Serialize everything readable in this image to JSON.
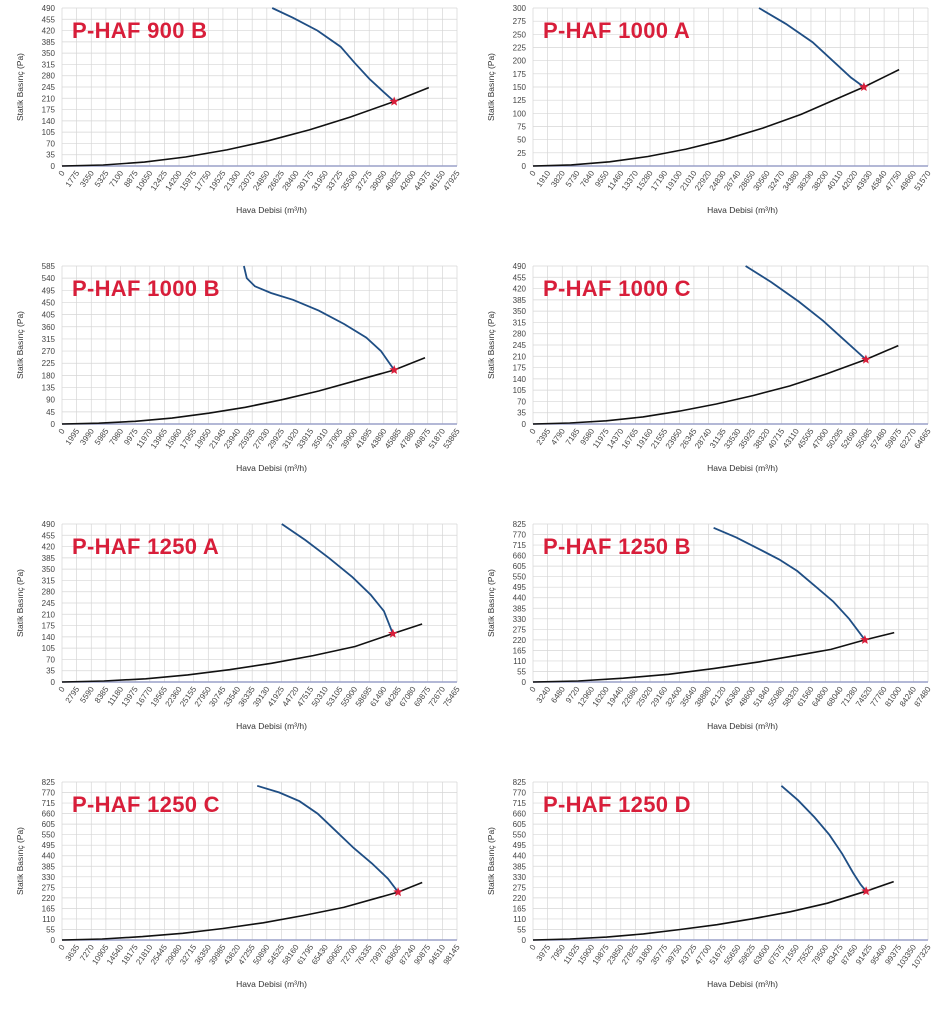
{
  "colors": {
    "title": "#d81e3a",
    "fan_curve": "#1f4e84",
    "system_curve": "#111111",
    "grid": "#d6d6d6",
    "x_axis": "#9aa0c8",
    "operating_point": "#d81e3a"
  },
  "chart_data": [
    {
      "type": "line",
      "title": "P-HAF 900 B",
      "xlabel": "Hava Debisi (m³/h)",
      "ylabel": "Statik Basınç (Pa)",
      "grid": true,
      "x_ticks": [
        "0",
        "1775",
        "3550",
        "5325",
        "7100",
        "8875",
        "10650",
        "12425",
        "14200",
        "15975",
        "17750",
        "19525",
        "21300",
        "23075",
        "24850",
        "26625",
        "28400",
        "30175",
        "31950",
        "33725",
        "35500",
        "37275",
        "39050",
        "40825",
        "42600",
        "44375",
        "46150",
        "47925"
      ],
      "y_ticks": [
        "0",
        "35",
        "70",
        "105",
        "140",
        "175",
        "210",
        "245",
        "280",
        "315",
        "350",
        "385",
        "420",
        "455",
        "490"
      ],
      "xlim": [
        0,
        47925
      ],
      "ylim": [
        0,
        490
      ],
      "series": [
        {
          "role": "fan",
          "x": [
            25500,
            28000,
            31000,
            33800,
            35500,
            37300,
            39000,
            40300
          ],
          "y": [
            490,
            460,
            420,
            370,
            320,
            270,
            230,
            200
          ]
        },
        {
          "role": "system",
          "x": [
            0,
            5000,
            10000,
            15000,
            20000,
            25000,
            30000,
            35000,
            40300,
            44500
          ],
          "y": [
            0,
            3,
            12,
            28,
            50,
            78,
            112,
            152,
            200,
            243
          ]
        }
      ],
      "operating_point": {
        "x": 40300,
        "y": 200
      }
    },
    {
      "type": "line",
      "title": "P-HAF 1000 A",
      "xlabel": "Hava Debisi (m³/h)",
      "ylabel": "Statik Basınç (Pa)",
      "grid": true,
      "x_ticks": [
        "0",
        "1910",
        "3820",
        "5730",
        "7640",
        "9550",
        "11460",
        "13370",
        "15280",
        "17190",
        "19100",
        "21010",
        "22920",
        "24830",
        "26740",
        "28650",
        "30560",
        "32470",
        "34380",
        "36290",
        "38200",
        "40110",
        "42020",
        "43930",
        "45840",
        "47750",
        "49660",
        "51570"
      ],
      "y_ticks": [
        "0",
        "25",
        "50",
        "75",
        "100",
        "125",
        "150",
        "175",
        "200",
        "225",
        "250",
        "275",
        "300"
      ],
      "xlim": [
        0,
        51570
      ],
      "ylim": [
        0,
        300
      ],
      "series": [
        {
          "role": "fan",
          "x": [
            29500,
            33000,
            36500,
            39500,
            41500,
            43200
          ],
          "y": [
            300,
            270,
            235,
            195,
            168,
            150
          ]
        },
        {
          "role": "system",
          "x": [
            0,
            5000,
            10000,
            15000,
            20000,
            25000,
            30000,
            35000,
            43200,
            47800
          ],
          "y": [
            0,
            2,
            8,
            18,
            32,
            50,
            72,
            98,
            150,
            183
          ]
        }
      ],
      "operating_point": {
        "x": 43200,
        "y": 150
      }
    },
    {
      "type": "line",
      "title": "P-HAF 1000 B",
      "xlabel": "Hava Debisi (m³/h)",
      "ylabel": "Statik Basınç (Pa)",
      "grid": true,
      "x_ticks": [
        "0",
        "1995",
        "3990",
        "5985",
        "7980",
        "9975",
        "11970",
        "13965",
        "15960",
        "17955",
        "19950",
        "21945",
        "23940",
        "25935",
        "27930",
        "29925",
        "31920",
        "33915",
        "35910",
        "37905",
        "39900",
        "41895",
        "43890",
        "45885",
        "47880",
        "49875",
        "51870",
        "53865"
      ],
      "y_ticks": [
        "0",
        "45",
        "90",
        "135",
        "180",
        "225",
        "270",
        "315",
        "360",
        "405",
        "450",
        "495",
        "540",
        "585"
      ],
      "xlim": [
        0,
        53865
      ],
      "ylim": [
        0,
        585
      ],
      "series": [
        {
          "role": "fan",
          "x": [
            24800,
            25200,
            26300,
            28500,
            31500,
            35000,
            38500,
            41500,
            43500,
            45300
          ],
          "y": [
            585,
            540,
            510,
            485,
            460,
            420,
            370,
            320,
            270,
            200
          ]
        },
        {
          "role": "system",
          "x": [
            0,
            5000,
            10000,
            15000,
            20000,
            25000,
            30000,
            35000,
            40000,
            45300,
            49500
          ],
          "y": [
            0,
            3,
            10,
            22,
            40,
            62,
            90,
            122,
            160,
            200,
            245
          ]
        }
      ],
      "operating_point": {
        "x": 45300,
        "y": 200
      }
    },
    {
      "type": "line",
      "title": "P-HAF 1000 C",
      "xlabel": "Hava Debisi (m³/h)",
      "ylabel": "Statik Basınç (Pa)",
      "grid": true,
      "x_ticks": [
        "0",
        "2395",
        "4790",
        "7185",
        "9580",
        "11975",
        "14370",
        "16765",
        "19160",
        "21555",
        "23950",
        "26345",
        "28740",
        "31135",
        "33530",
        "35925",
        "38320",
        "40715",
        "43110",
        "45505",
        "47900",
        "50295",
        "52690",
        "55085",
        "57480",
        "59875",
        "62270",
        "64665"
      ],
      "y_ticks": [
        "0",
        "35",
        "70",
        "105",
        "140",
        "175",
        "210",
        "245",
        "280",
        "315",
        "350",
        "385",
        "420",
        "455",
        "490"
      ],
      "xlim": [
        0,
        64665
      ],
      "ylim": [
        0,
        490
      ],
      "series": [
        {
          "role": "fan",
          "x": [
            34800,
            39000,
            43500,
            47500,
            51000,
            54500
          ],
          "y": [
            490,
            440,
            380,
            320,
            260,
            200
          ]
        },
        {
          "role": "system",
          "x": [
            0,
            6000,
            12000,
            18000,
            24000,
            30000,
            36000,
            42000,
            48000,
            54500,
            59800
          ],
          "y": [
            0,
            3,
            10,
            22,
            40,
            62,
            88,
            118,
            155,
            200,
            243
          ]
        }
      ],
      "operating_point": {
        "x": 54500,
        "y": 200
      }
    },
    {
      "type": "line",
      "title": "P-HAF 1250 A",
      "xlabel": "Hava Debisi (m³/h)",
      "ylabel": "Statik Basınç (Pa)",
      "grid": true,
      "x_ticks": [
        "0",
        "2795",
        "5590",
        "8385",
        "11180",
        "13975",
        "16770",
        "19565",
        "22360",
        "25155",
        "27950",
        "30745",
        "33540",
        "36335",
        "39130",
        "41925",
        "44720",
        "47515",
        "50310",
        "53105",
        "55900",
        "58695",
        "61490",
        "64285",
        "67080",
        "69875",
        "72670",
        "75465"
      ],
      "y_ticks": [
        "0",
        "35",
        "70",
        "105",
        "140",
        "175",
        "210",
        "245",
        "280",
        "315",
        "350",
        "385",
        "420",
        "455",
        "490"
      ],
      "xlim": [
        0,
        75465
      ],
      "ylim": [
        0,
        490
      ],
      "series": [
        {
          "role": "fan",
          "x": [
            42000,
            46500,
            51000,
            55500,
            59000,
            61500,
            63200
          ],
          "y": [
            490,
            440,
            385,
            325,
            270,
            220,
            150
          ]
        },
        {
          "role": "system",
          "x": [
            0,
            8000,
            16000,
            24000,
            32000,
            40000,
            48000,
            56000,
            63200,
            68800
          ],
          "y": [
            0,
            3,
            10,
            22,
            38,
            58,
            82,
            110,
            150,
            180
          ]
        }
      ],
      "operating_point": {
        "x": 63200,
        "y": 150
      }
    },
    {
      "type": "line",
      "title": "P-HAF 1250 B",
      "xlabel": "Hava Debisi (m³/h)",
      "ylabel": "Statik Basınç (Pa)",
      "grid": true,
      "x_ticks": [
        "0",
        "3240",
        "6480",
        "9720",
        "12960",
        "16200",
        "19440",
        "22680",
        "25920",
        "29160",
        "32400",
        "35640",
        "38880",
        "42120",
        "45360",
        "48600",
        "51840",
        "55080",
        "58320",
        "61560",
        "64800",
        "68040",
        "71280",
        "74520",
        "77760",
        "81000",
        "84240",
        "87480"
      ],
      "y_ticks": [
        "0",
        "55",
        "110",
        "165",
        "220",
        "275",
        "330",
        "385",
        "440",
        "495",
        "550",
        "605",
        "660",
        "715",
        "770",
        "825"
      ],
      "xlim": [
        0,
        87480
      ],
      "ylim": [
        0,
        825
      ],
      "series": [
        {
          "role": "fan",
          "x": [
            40000,
            45000,
            50000,
            54500,
            58500,
            62500,
            66500,
            70000,
            73500
          ],
          "y": [
            805,
            755,
            695,
            640,
            580,
            500,
            420,
            330,
            220
          ]
        },
        {
          "role": "system",
          "x": [
            0,
            10000,
            20000,
            30000,
            40000,
            50000,
            60000,
            66000,
            73500,
            80000
          ],
          "y": [
            0,
            5,
            20,
            40,
            70,
            105,
            145,
            170,
            220,
            258
          ]
        }
      ],
      "operating_point": {
        "x": 73500,
        "y": 220
      }
    },
    {
      "type": "line",
      "title": "P-HAF 1250 C",
      "xlabel": "Hava Debisi (m³/h)",
      "ylabel": "Statik Basınç (Pa)",
      "grid": true,
      "x_ticks": [
        "0",
        "3635",
        "7270",
        "10905",
        "14540",
        "18175",
        "21810",
        "25445",
        "29080",
        "32715",
        "36350",
        "39985",
        "43620",
        "47255",
        "50890",
        "54525",
        "58160",
        "61795",
        "65430",
        "69065",
        "72700",
        "76335",
        "79970",
        "83605",
        "87240",
        "90875",
        "94510",
        "98145"
      ],
      "y_ticks": [
        "0",
        "55",
        "110",
        "165",
        "220",
        "275",
        "330",
        "385",
        "440",
        "495",
        "550",
        "605",
        "660",
        "715",
        "770",
        "825"
      ],
      "xlim": [
        0,
        98145
      ],
      "ylim": [
        0,
        825
      ],
      "series": [
        {
          "role": "fan",
          "x": [
            48500,
            54000,
            59000,
            63500,
            68000,
            72500,
            77000,
            81000,
            83500
          ],
          "y": [
            805,
            770,
            725,
            660,
            570,
            480,
            400,
            320,
            250
          ]
        },
        {
          "role": "system",
          "x": [
            0,
            10000,
            20000,
            30000,
            40000,
            50000,
            60000,
            70000,
            83500,
            89500
          ],
          "y": [
            0,
            5,
            18,
            35,
            60,
            90,
            128,
            170,
            250,
            300
          ]
        }
      ],
      "operating_point": {
        "x": 83500,
        "y": 250
      }
    },
    {
      "type": "line",
      "title": "P-HAF 1250 D",
      "xlabel": "Hava Debisi (m³/h)",
      "ylabel": "Statik Basınç (Pa)",
      "grid": true,
      "x_ticks": [
        "0",
        "3975",
        "7950",
        "11925",
        "15900",
        "19875",
        "23850",
        "27825",
        "31800",
        "35775",
        "39750",
        "43725",
        "47700",
        "51675",
        "55650",
        "59625",
        "63600",
        "67575",
        "71550",
        "75525",
        "79500",
        "83475",
        "87450",
        "91425",
        "95400",
        "99375",
        "103350",
        "107325"
      ],
      "y_ticks": [
        "0",
        "55",
        "110",
        "165",
        "220",
        "275",
        "330",
        "385",
        "440",
        "495",
        "550",
        "605",
        "660",
        "715",
        "770",
        "825"
      ],
      "xlim": [
        0,
        107325
      ],
      "ylim": [
        0,
        825
      ],
      "series": [
        {
          "role": "fan",
          "x": [
            67500,
            72000,
            76500,
            80500,
            84000,
            87000,
            89000,
            90500
          ],
          "y": [
            805,
            730,
            640,
            550,
            450,
            350,
            290,
            255
          ]
        },
        {
          "role": "system",
          "x": [
            0,
            10000,
            20000,
            30000,
            40000,
            50000,
            60000,
            70000,
            80000,
            90500,
            98000
          ],
          "y": [
            0,
            5,
            15,
            32,
            55,
            80,
            112,
            148,
            192,
            255,
            305
          ]
        }
      ],
      "operating_point": {
        "x": 90500,
        "y": 255
      }
    }
  ]
}
